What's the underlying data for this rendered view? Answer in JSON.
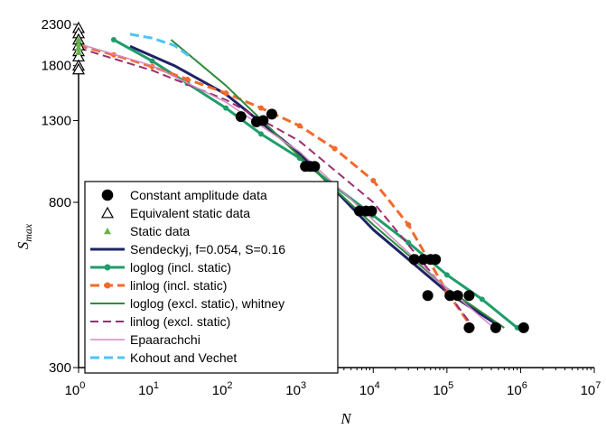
{
  "chart_data": {
    "type": "scatter",
    "xlabel": "N",
    "ylabel": "S",
    "ylabel_sub": "max",
    "xscale": "log",
    "yscale": "log",
    "xlim": [
      1,
      10000000
    ],
    "ylim": [
      300,
      2300
    ],
    "x_ticks": [
      {
        "value": 1,
        "base": "10",
        "exp": "0"
      },
      {
        "value": 10,
        "base": "10",
        "exp": "1"
      },
      {
        "value": 100,
        "base": "10",
        "exp": "2"
      },
      {
        "value": 1000,
        "base": "10",
        "exp": "3"
      },
      {
        "value": 10000,
        "base": "10",
        "exp": "4"
      },
      {
        "value": 100000,
        "base": "10",
        "exp": "5"
      },
      {
        "value": 1000000,
        "base": "10",
        "exp": "6"
      },
      {
        "value": 10000000,
        "base": "10",
        "exp": "7"
      }
    ],
    "y_ticks": [
      {
        "value": 300,
        "label": "300"
      },
      {
        "value": 800,
        "label": "800"
      },
      {
        "value": 1300,
        "label": "1300"
      },
      {
        "value": 1800,
        "label": "1800"
      },
      {
        "value": 2300,
        "label": "2300"
      }
    ],
    "legend_position": "bottom-left",
    "series": [
      {
        "name": "Constant amplitude data",
        "kind": "markers",
        "marker": "circle",
        "color": "#000000",
        "points": [
          [
            160,
            1330
          ],
          [
            260,
            1290
          ],
          [
            320,
            1300
          ],
          [
            420,
            1350
          ],
          [
            1200,
            990
          ],
          [
            1400,
            990
          ],
          [
            1600,
            990
          ],
          [
            6500,
            760
          ],
          [
            8000,
            760
          ],
          [
            9500,
            760
          ],
          [
            36000,
            570
          ],
          [
            48000,
            570
          ],
          [
            60000,
            570
          ],
          [
            70000,
            570
          ],
          [
            55000,
            460
          ],
          [
            110000,
            460
          ],
          [
            140000,
            460
          ],
          [
            200000,
            460
          ],
          [
            200000,
            380
          ],
          [
            460000,
            380
          ],
          [
            1100000,
            380
          ]
        ]
      },
      {
        "name": "Equivalent static data",
        "kind": "markers",
        "marker": "triangle-open",
        "color": "#000000",
        "points": [
          [
            1,
            2250
          ],
          [
            1,
            2180
          ],
          [
            1,
            2100
          ],
          [
            1,
            2030
          ],
          [
            1,
            1960
          ],
          [
            1,
            1900
          ],
          [
            1,
            1800
          ],
          [
            1,
            1760
          ]
        ]
      },
      {
        "name": "Static data",
        "kind": "markers",
        "marker": "triangle-filled",
        "color": "#6ab04c",
        "points": [
          [
            1,
            2100
          ],
          [
            1,
            2050
          ],
          [
            1,
            2000
          ],
          [
            1,
            1950
          ]
        ]
      },
      {
        "name": "Sendeckyj, f=0.054, S=0.16",
        "kind": "line",
        "style": "solid",
        "color": "#1f2366",
        "width": 3,
        "points": [
          [
            5,
            2020
          ],
          [
            20,
            1800
          ],
          [
            100,
            1520
          ],
          [
            1000,
            1070
          ],
          [
            10000,
            680
          ],
          [
            100000,
            470
          ],
          [
            500000,
            385
          ]
        ]
      },
      {
        "name": "loglog (incl. static)",
        "kind": "line-markers",
        "style": "solid",
        "color": "#1f9d6b",
        "width": 3,
        "points": [
          [
            3,
            2100
          ],
          [
            10,
            1850
          ],
          [
            30,
            1620
          ],
          [
            100,
            1400
          ],
          [
            300,
            1200
          ],
          [
            1000,
            1040
          ],
          [
            3000,
            880
          ],
          [
            10000,
            740
          ],
          [
            30000,
            630
          ],
          [
            100000,
            520
          ],
          [
            300000,
            450
          ],
          [
            900000,
            380
          ]
        ]
      },
      {
        "name": "linlog (incl. static)",
        "kind": "line-markers",
        "style": "dashed",
        "color": "#f26a2a",
        "width": 3,
        "points": [
          [
            1,
            2030
          ],
          [
            3,
            1920
          ],
          [
            10,
            1790
          ],
          [
            30,
            1660
          ],
          [
            100,
            1530
          ],
          [
            300,
            1400
          ],
          [
            1000,
            1260
          ],
          [
            3000,
            1100
          ],
          [
            10000,
            910
          ],
          [
            30000,
            700
          ],
          [
            100000,
            470
          ],
          [
            220000,
            380
          ]
        ]
      },
      {
        "name": "loglog (excl. static), whitney",
        "kind": "line",
        "style": "solid",
        "color": "#2e8b3d",
        "width": 2,
        "points": [
          [
            18,
            2100
          ],
          [
            100,
            1600
          ],
          [
            1000,
            1050
          ],
          [
            10000,
            700
          ],
          [
            100000,
            480
          ],
          [
            600000,
            380
          ]
        ]
      },
      {
        "name": "linlog (excl. static)",
        "kind": "line",
        "style": "dashed",
        "color": "#9b2d6e",
        "width": 2,
        "points": [
          [
            1,
            2000
          ],
          [
            10,
            1750
          ],
          [
            100,
            1470
          ],
          [
            1000,
            1150
          ],
          [
            10000,
            800
          ],
          [
            100000,
            470
          ],
          [
            220000,
            385
          ]
        ]
      },
      {
        "name": "Epaarachchi",
        "kind": "line",
        "style": "solid",
        "color": "#d48ac0",
        "width": 1.5,
        "points": [
          [
            1,
            2050
          ],
          [
            10,
            1800
          ],
          [
            100,
            1450
          ],
          [
            1000,
            1080
          ],
          [
            10000,
            720
          ],
          [
            100000,
            480
          ],
          [
            400000,
            385
          ]
        ]
      },
      {
        "name": "Kohout and Vechet",
        "kind": "line",
        "style": "dashed",
        "color": "#4fc3f7",
        "width": 3,
        "points": [
          [
            5,
            2170
          ],
          [
            10,
            2120
          ],
          [
            20,
            2030
          ],
          [
            35,
            1880
          ]
        ]
      }
    ]
  }
}
